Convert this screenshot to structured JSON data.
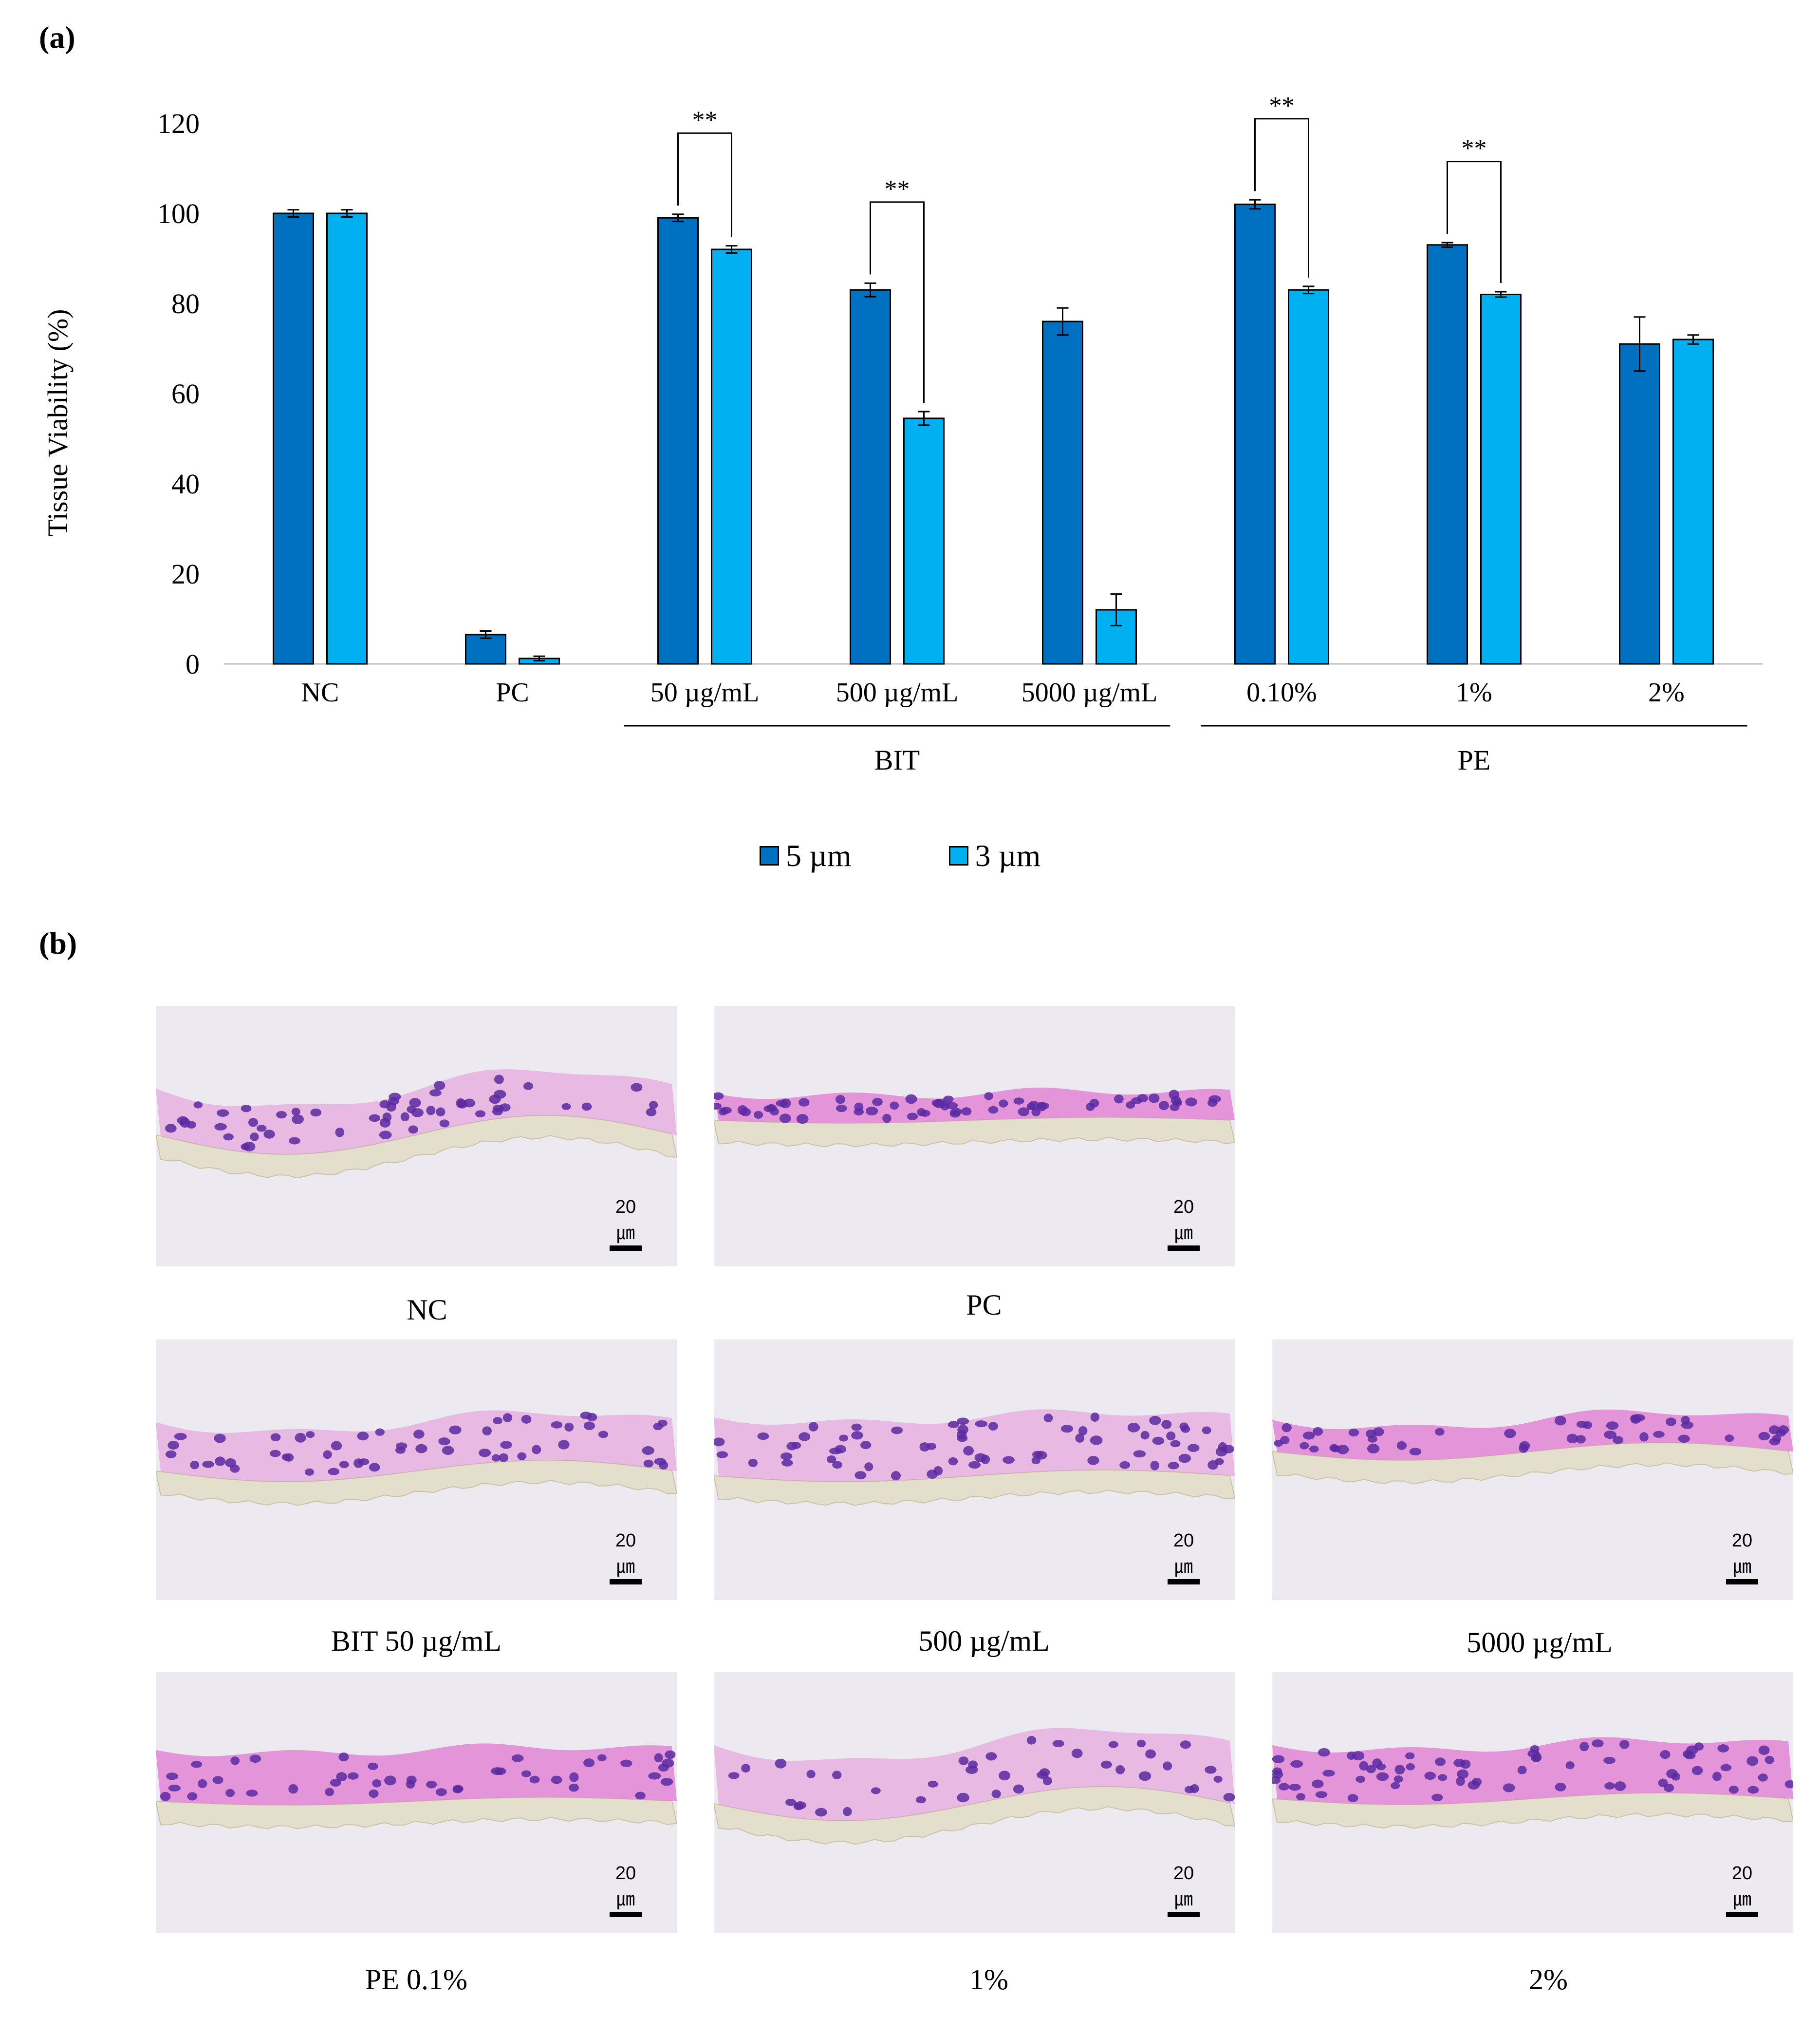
{
  "panel_a_label": "(a)",
  "panel_b_label": "(b)",
  "colors": {
    "series_5um": "#0070C0",
    "series_3um": "#00B0F0",
    "tissue_pink": "#e27fd3",
    "nucleus": "#5a2aa0",
    "membrane": "#e3dfcc",
    "bg": "#ece9f0"
  },
  "chart_data": {
    "type": "bar",
    "ylabel": "Tissue Viability  (%)",
    "ylim": [
      0,
      120
    ],
    "yticks": [
      0,
      20,
      40,
      60,
      80,
      100,
      120
    ],
    "grid": false,
    "legend_position": "bottom-center",
    "categories": [
      "NC",
      "PC",
      "50 µg/mL",
      "500 µg/mL",
      "5000 µg/mL",
      "0.10%",
      "1%",
      "2%"
    ],
    "groups": [
      {
        "label": "BIT",
        "from": 2,
        "to": 4
      },
      {
        "label": "PE",
        "from": 5,
        "to": 7
      }
    ],
    "series": [
      {
        "name": "5 µm",
        "values": [
          100,
          6.5,
          99,
          83,
          76,
          102,
          93,
          71
        ],
        "errors": [
          0.8,
          0.8,
          0.8,
          1.5,
          3.0,
          1.0,
          0.5,
          6.0
        ]
      },
      {
        "name": "3 µm",
        "values": [
          100,
          1.2,
          92,
          54.5,
          12,
          83,
          82,
          72
        ],
        "errors": [
          0.8,
          0.5,
          0.8,
          1.5,
          3.5,
          0.8,
          0.6,
          1.0
        ]
      }
    ],
    "significance": [
      {
        "category": 2,
        "label": "**"
      },
      {
        "category": 3,
        "label": "**"
      },
      {
        "category": 5,
        "label": "**"
      },
      {
        "category": 6,
        "label": "**"
      }
    ]
  },
  "micrographs": [
    {
      "caption": "NC",
      "scale_label": "20㎛"
    },
    {
      "caption": "PC",
      "scale_label": "20㎛"
    },
    {
      "caption": "BIT  50 µg/mL",
      "scale_label": "20㎛"
    },
    {
      "caption": "500 µg/mL",
      "scale_label": "20㎛"
    },
    {
      "caption": "5000 µg/mL",
      "scale_label": "20㎛"
    },
    {
      "caption": "PE 0.1%",
      "scale_label": "20㎛"
    },
    {
      "caption": "1%",
      "scale_label": "20㎛"
    },
    {
      "caption": "2%",
      "scale_label": "20㎛"
    }
  ]
}
